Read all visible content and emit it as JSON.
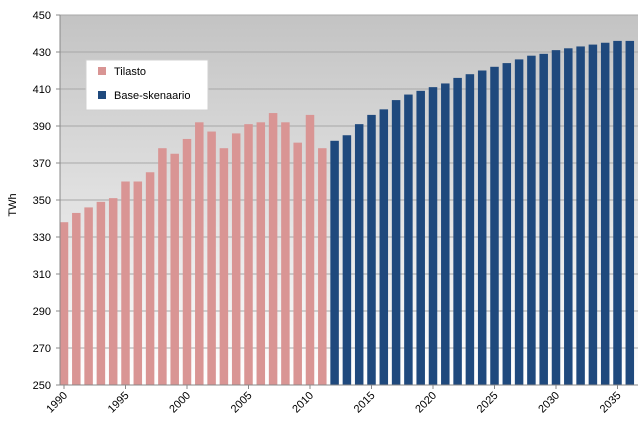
{
  "chart_data": {
    "type": "bar",
    "ylabel": "TWh",
    "ylim": [
      250,
      450
    ],
    "yticks": [
      250,
      270,
      290,
      310,
      330,
      350,
      370,
      390,
      410,
      430,
      450
    ],
    "xticks": [
      1990,
      1995,
      2000,
      2005,
      2010,
      2015,
      2020,
      2025,
      2030,
      2035
    ],
    "grid": true,
    "legend_position": "top-left",
    "series": [
      {
        "name": "Tilasto",
        "color": "#d99594",
        "x": [
          1990,
          1991,
          1992,
          1993,
          1994,
          1995,
          1996,
          1997,
          1998,
          1999,
          2000,
          2001,
          2002,
          2003,
          2004,
          2005,
          2006,
          2007,
          2008,
          2009,
          2010,
          2011
        ],
        "values": [
          338,
          343,
          346,
          349,
          351,
          360,
          360,
          365,
          378,
          375,
          383,
          392,
          387,
          378,
          386,
          391,
          392,
          397,
          392,
          381,
          396,
          378
        ]
      },
      {
        "name": "Base-skenaario",
        "color": "#1f497d",
        "x": [
          2012,
          2013,
          2014,
          2015,
          2016,
          2017,
          2018,
          2019,
          2020,
          2021,
          2022,
          2023,
          2024,
          2025,
          2026,
          2027,
          2028,
          2029,
          2030,
          2031,
          2032,
          2033,
          2034,
          2035,
          2036
        ],
        "values": [
          382,
          385,
          391,
          396,
          399,
          404,
          407,
          409,
          411,
          413,
          416,
          418,
          420,
          422,
          424,
          426,
          428,
          429,
          431,
          432,
          433,
          434,
          435,
          436,
          436
        ]
      }
    ]
  }
}
